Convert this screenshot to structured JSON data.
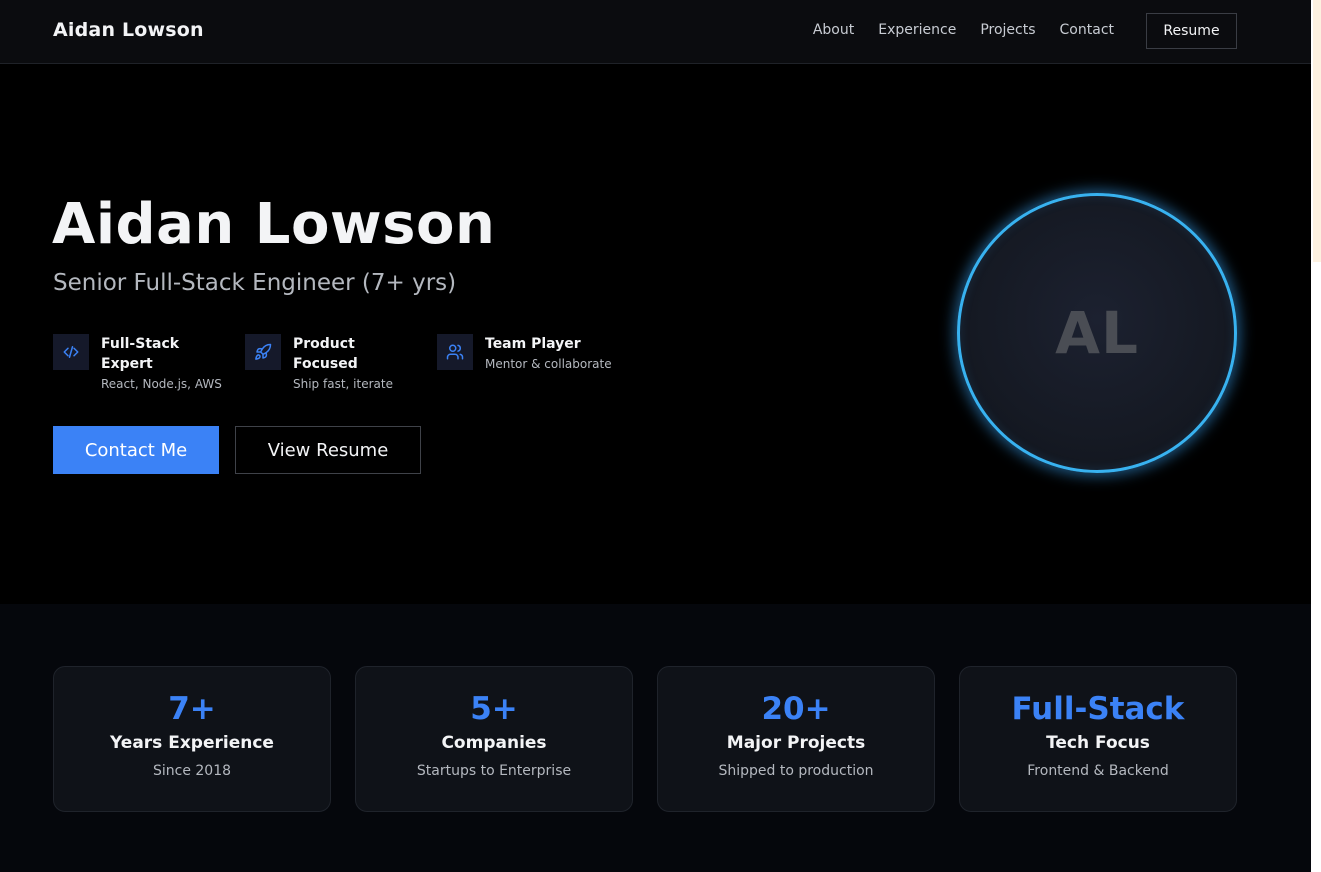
{
  "header": {
    "brand": "Aidan Lowson",
    "nav": [
      "About",
      "Experience",
      "Projects",
      "Contact"
    ],
    "resume_label": "Resume"
  },
  "hero": {
    "title": "Aidan Lowson",
    "subtitle": "Senior Full-Stack Engineer (7+ yrs)",
    "features": [
      {
        "icon": "code-icon",
        "title": "Full-Stack Expert",
        "desc": "React, Node.js, AWS"
      },
      {
        "icon": "rocket-icon",
        "title": "Product Focused",
        "desc": "Ship fast, iterate"
      },
      {
        "icon": "users-icon",
        "title": "Team Player",
        "desc": "Mentor & collaborate"
      }
    ],
    "primary_cta": "Contact Me",
    "secondary_cta": "View Resume",
    "avatar_initials": "AL"
  },
  "stats": [
    {
      "value": "7+",
      "label": "Years Experience",
      "sub": "Since 2018"
    },
    {
      "value": "5+",
      "label": "Companies",
      "sub": "Startups to Enterprise"
    },
    {
      "value": "20+",
      "label": "Major Projects",
      "sub": "Shipped to production"
    },
    {
      "value": "Full-Stack",
      "label": "Tech Focus",
      "sub": "Frontend & Backend"
    }
  ],
  "colors": {
    "accent": "#3b82f6",
    "avatar_ring": "#38b2f0",
    "background": "#000000"
  }
}
